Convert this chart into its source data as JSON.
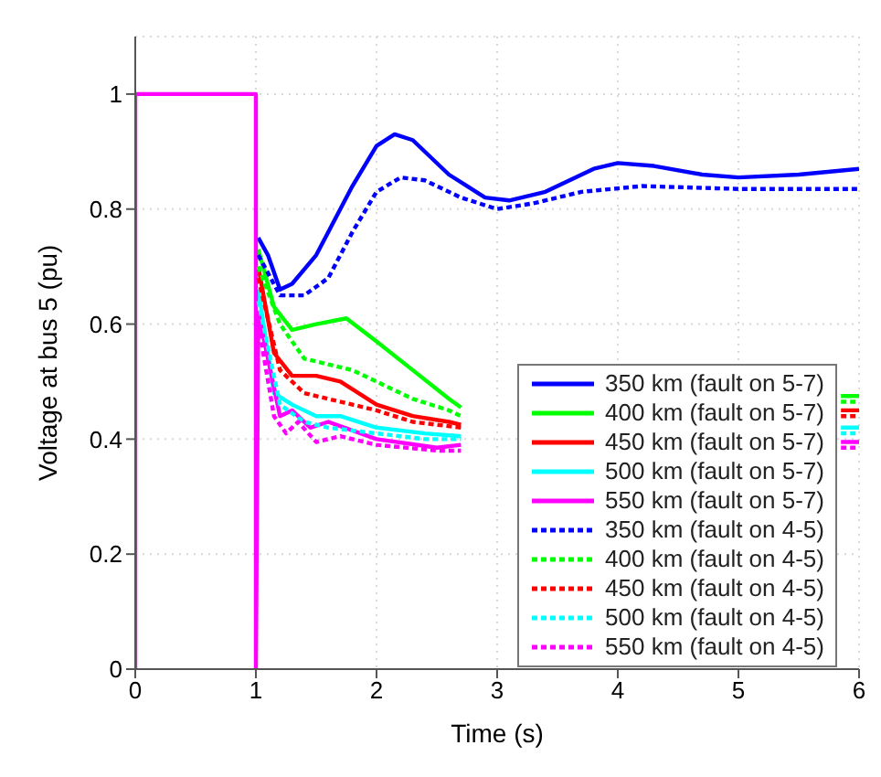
{
  "chart_data": {
    "type": "line",
    "xlabel": "Time (s)",
    "ylabel": "Voltage at bus 5 (pu)",
    "xlim": [
      0,
      6
    ],
    "xticks": [
      0,
      1,
      2,
      3,
      4,
      5,
      6
    ],
    "ylim": [
      0,
      1.1
    ],
    "yticks": [
      0,
      0.2,
      0.4,
      0.6,
      0.8,
      1
    ],
    "grid": true,
    "legend": "bottom right",
    "marker": "none",
    "series": [
      {
        "name": "350 km (fault on 5-7)",
        "color": "#0000ff",
        "line_style": "solid",
        "x": [
          1.02,
          1.1,
          1.2,
          1.3,
          1.5,
          1.8,
          2.0,
          2.15,
          2.3,
          2.6,
          2.9,
          3.1,
          3.4,
          3.8,
          4.0,
          4.3,
          4.7,
          5.0,
          5.5,
          6
        ],
        "values": [
          0.75,
          0.72,
          0.66,
          0.67,
          0.72,
          0.84,
          0.91,
          0.93,
          0.92,
          0.86,
          0.82,
          0.815,
          0.83,
          0.87,
          0.88,
          0.875,
          0.86,
          0.855,
          0.86,
          0.87
        ]
      },
      {
        "name": "400 km (fault on 5-7)",
        "color": "#00ff00",
        "line_style": "solid",
        "x": [
          1.02,
          1.15,
          1.3,
          1.5,
          1.75,
          2.0,
          2.3,
          2.6,
          2.7,
          4.0,
          5.85,
          6
        ],
        "values": [
          0.73,
          0.63,
          0.59,
          0.6,
          0.61,
          0.57,
          0.52,
          0.47,
          0.455,
          null,
          0.475,
          0.475
        ]
      },
      {
        "name": "450 km (fault on 5-7)",
        "color": "#ff0000",
        "line_style": "solid",
        "x": [
          1.02,
          1.15,
          1.3,
          1.5,
          1.7,
          2.0,
          2.3,
          2.6,
          2.7,
          4.0,
          5.85,
          6
        ],
        "values": [
          0.7,
          0.55,
          0.51,
          0.51,
          0.5,
          0.46,
          0.44,
          0.43,
          0.425,
          null,
          0.45,
          0.45
        ]
      },
      {
        "name": "500 km (fault on 5-7)",
        "color": "#00ffff",
        "line_style": "solid",
        "x": [
          1.02,
          1.15,
          1.3,
          1.5,
          1.7,
          2.0,
          2.4,
          2.7,
          4.0,
          5.85,
          6
        ],
        "values": [
          0.66,
          0.48,
          0.46,
          0.44,
          0.44,
          0.42,
          0.41,
          0.405,
          null,
          0.42,
          0.42
        ]
      },
      {
        "name": "550 km (fault on 5-7)",
        "color": "#ff00ff",
        "line_style": "solid",
        "x": [
          0,
          0,
          1,
          1,
          1.02,
          1.2,
          1.3,
          1.45,
          1.6,
          2.0,
          2.5,
          2.7,
          4.0,
          5.85,
          6
        ],
        "values": [
          0,
          1,
          1,
          0,
          0.62,
          0.44,
          0.45,
          0.42,
          0.43,
          0.4,
          0.385,
          0.39,
          null,
          0.395,
          0.395
        ]
      },
      {
        "name": "350 km (fault on 4-5)",
        "color": "#0000ff",
        "line_style": "dotted",
        "x": [
          1.02,
          1.2,
          1.4,
          1.6,
          1.8,
          2.0,
          2.2,
          2.4,
          2.7,
          3.0,
          3.3,
          3.7,
          4.2,
          5.0,
          6
        ],
        "values": [
          0.72,
          0.65,
          0.65,
          0.68,
          0.76,
          0.83,
          0.855,
          0.85,
          0.82,
          0.8,
          0.81,
          0.83,
          0.84,
          0.835,
          0.835
        ]
      },
      {
        "name": "400 km (fault on 4-5)",
        "color": "#00ff00",
        "line_style": "dotted",
        "x": [
          1.02,
          1.2,
          1.4,
          1.6,
          1.8,
          2.0,
          2.3,
          2.6,
          2.7,
          4.0,
          5.85,
          6
        ],
        "values": [
          0.7,
          0.6,
          0.54,
          0.53,
          0.52,
          0.5,
          0.47,
          0.45,
          0.44,
          null,
          0.465,
          0.465
        ]
      },
      {
        "name": "450 km (fault on 4-5)",
        "color": "#ff0000",
        "line_style": "dotted",
        "x": [
          1.02,
          1.2,
          1.4,
          1.6,
          1.8,
          2.0,
          2.3,
          2.7,
          4.0,
          5.85,
          6
        ],
        "values": [
          0.68,
          0.52,
          0.48,
          0.47,
          0.46,
          0.45,
          0.43,
          0.42,
          null,
          0.44,
          0.44
        ]
      },
      {
        "name": "500 km (fault on 4-5)",
        "color": "#00ffff",
        "line_style": "dotted",
        "x": [
          1.02,
          1.2,
          1.4,
          1.6,
          2.0,
          2.4,
          2.7,
          4.0,
          5.85,
          6
        ],
        "values": [
          0.64,
          0.46,
          0.43,
          0.42,
          0.41,
          0.4,
          0.4,
          null,
          0.41,
          0.41
        ]
      },
      {
        "name": "550 km (fault on 4-5)",
        "color": "#ff00ff",
        "line_style": "dotted",
        "x": [
          1.02,
          1.15,
          1.25,
          1.35,
          1.5,
          1.7,
          2.0,
          2.5,
          2.7,
          4.0,
          5.85,
          6
        ],
        "values": [
          0.6,
          0.44,
          0.41,
          0.43,
          0.395,
          0.405,
          0.39,
          0.38,
          0.38,
          null,
          0.385,
          0.385
        ]
      }
    ]
  }
}
